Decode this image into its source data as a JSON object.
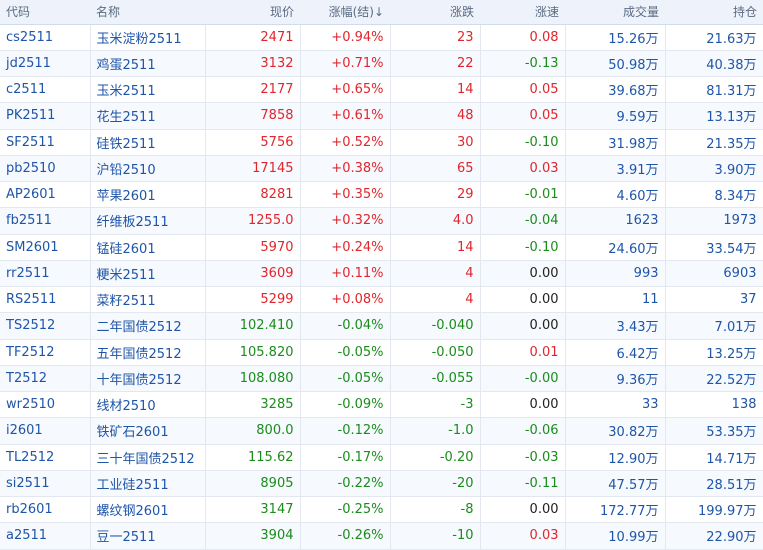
{
  "headers": [
    "代码",
    "名称",
    "现价",
    "涨幅(结)↓",
    "涨跌",
    "涨速",
    "成交量",
    "持仓"
  ],
  "rows": [
    {
      "code": "cs2511",
      "name": "玉米淀粉2511",
      "price": "2471",
      "pct": "+0.94%",
      "change": "23",
      "speed": "0.08",
      "volume": "15.26万",
      "oi": "21.63万",
      "dir": "up",
      "speed_dir": "up"
    },
    {
      "code": "jd2511",
      "name": "鸡蛋2511",
      "price": "3132",
      "pct": "+0.71%",
      "change": "22",
      "speed": "-0.13",
      "volume": "50.98万",
      "oi": "40.38万",
      "dir": "up",
      "speed_dir": "down"
    },
    {
      "code": "c2511",
      "name": "玉米2511",
      "price": "2177",
      "pct": "+0.65%",
      "change": "14",
      "speed": "0.05",
      "volume": "39.68万",
      "oi": "81.31万",
      "dir": "up",
      "speed_dir": "up"
    },
    {
      "code": "PK2511",
      "name": "花生2511",
      "price": "7858",
      "pct": "+0.61%",
      "change": "48",
      "speed": "0.05",
      "volume": "9.59万",
      "oi": "13.13万",
      "dir": "up",
      "speed_dir": "up"
    },
    {
      "code": "SF2511",
      "name": "硅铁2511",
      "price": "5756",
      "pct": "+0.52%",
      "change": "30",
      "speed": "-0.10",
      "volume": "31.98万",
      "oi": "21.35万",
      "dir": "up",
      "speed_dir": "down"
    },
    {
      "code": "pb2510",
      "name": "沪铅2510",
      "price": "17145",
      "pct": "+0.38%",
      "change": "65",
      "speed": "0.03",
      "volume": "3.91万",
      "oi": "3.90万",
      "dir": "up",
      "speed_dir": "up"
    },
    {
      "code": "AP2601",
      "name": "苹果2601",
      "price": "8281",
      "pct": "+0.35%",
      "change": "29",
      "speed": "-0.01",
      "volume": "4.60万",
      "oi": "8.34万",
      "dir": "up",
      "speed_dir": "down"
    },
    {
      "code": "fb2511",
      "name": "纤维板2511",
      "price": "1255.0",
      "pct": "+0.32%",
      "change": "4.0",
      "speed": "-0.04",
      "volume": "1623",
      "oi": "1973",
      "dir": "up",
      "speed_dir": "down"
    },
    {
      "code": "SM2601",
      "name": "锰硅2601",
      "price": "5970",
      "pct": "+0.24%",
      "change": "14",
      "speed": "-0.10",
      "volume": "24.60万",
      "oi": "33.54万",
      "dir": "up",
      "speed_dir": "down"
    },
    {
      "code": "rr2511",
      "name": "粳米2511",
      "price": "3609",
      "pct": "+0.11%",
      "change": "4",
      "speed": "0.00",
      "volume": "993",
      "oi": "6903",
      "dir": "up",
      "speed_dir": "flat"
    },
    {
      "code": "RS2511",
      "name": "菜籽2511",
      "price": "5299",
      "pct": "+0.08%",
      "change": "4",
      "speed": "0.00",
      "volume": "11",
      "oi": "37",
      "dir": "up",
      "speed_dir": "flat"
    },
    {
      "code": "TS2512",
      "name": "二年国债2512",
      "price": "102.410",
      "pct": "-0.04%",
      "change": "-0.040",
      "speed": "0.00",
      "volume": "3.43万",
      "oi": "7.01万",
      "dir": "down",
      "speed_dir": "flat"
    },
    {
      "code": "TF2512",
      "name": "五年国债2512",
      "price": "105.820",
      "pct": "-0.05%",
      "change": "-0.050",
      "speed": "0.01",
      "volume": "6.42万",
      "oi": "13.25万",
      "dir": "down",
      "speed_dir": "up"
    },
    {
      "code": "T2512",
      "name": "十年国债2512",
      "price": "108.080",
      "pct": "-0.05%",
      "change": "-0.055",
      "speed": "-0.00",
      "volume": "9.36万",
      "oi": "22.52万",
      "dir": "down",
      "speed_dir": "down"
    },
    {
      "code": "wr2510",
      "name": "线材2510",
      "price": "3285",
      "pct": "-0.09%",
      "change": "-3",
      "speed": "0.00",
      "volume": "33",
      "oi": "138",
      "dir": "down",
      "speed_dir": "flat"
    },
    {
      "code": "i2601",
      "name": "铁矿石2601",
      "price": "800.0",
      "pct": "-0.12%",
      "change": "-1.0",
      "speed": "-0.06",
      "volume": "30.82万",
      "oi": "53.35万",
      "dir": "down",
      "speed_dir": "down"
    },
    {
      "code": "TL2512",
      "name": "三十年国债2512",
      "price": "115.62",
      "pct": "-0.17%",
      "change": "-0.20",
      "speed": "-0.03",
      "volume": "12.90万",
      "oi": "14.71万",
      "dir": "down",
      "speed_dir": "down"
    },
    {
      "code": "si2511",
      "name": "工业硅2511",
      "price": "8905",
      "pct": "-0.22%",
      "change": "-20",
      "speed": "-0.11",
      "volume": "47.57万",
      "oi": "28.51万",
      "dir": "down",
      "speed_dir": "down"
    },
    {
      "code": "rb2601",
      "name": "螺纹钢2601",
      "price": "3147",
      "pct": "-0.25%",
      "change": "-8",
      "speed": "0.00",
      "volume": "172.77万",
      "oi": "199.97万",
      "dir": "down",
      "speed_dir": "flat"
    },
    {
      "code": "a2511",
      "name": "豆一2511",
      "price": "3904",
      "pct": "-0.26%",
      "change": "-10",
      "speed": "0.03",
      "volume": "10.99万",
      "oi": "22.90万",
      "dir": "down",
      "speed_dir": "up"
    }
  ]
}
